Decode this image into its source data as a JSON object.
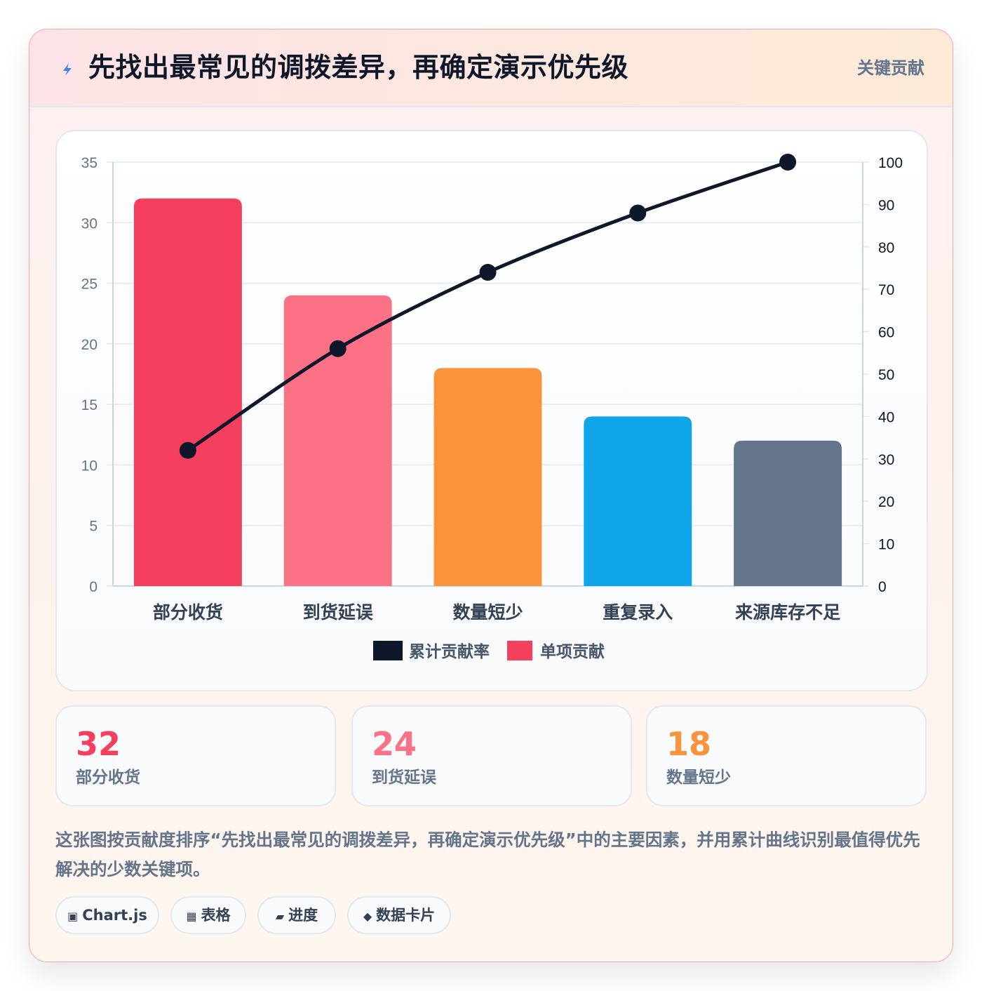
{
  "header": {
    "icon": "lightning-icon",
    "title": "先找出最常见的调拨差异，再确定演示优先级",
    "badge": "关键贡献"
  },
  "colors": {
    "line": "#0f172a",
    "bars": [
      "#f43f5e",
      "#fb7185",
      "#fb923c",
      "#0ea5e9",
      "#64748b"
    ],
    "grid": "#e2e8f0",
    "tick": "#64748b"
  },
  "chart_data": {
    "type": "bar",
    "categories": [
      "部分收货",
      "到货延误",
      "数量短少",
      "重复录入",
      "来源库存不足"
    ],
    "series": [
      {
        "name": "单项贡献",
        "type": "bar",
        "axis": "left",
        "values": [
          32,
          24,
          18,
          14,
          12
        ]
      },
      {
        "name": "累计贡献率",
        "type": "line",
        "axis": "right",
        "values": [
          32,
          56,
          74,
          88,
          100
        ]
      }
    ],
    "y_left": {
      "range": [
        0,
        35
      ],
      "ticks": [
        0,
        5,
        10,
        15,
        20,
        25,
        30,
        35
      ]
    },
    "y_right": {
      "range": [
        0,
        100
      ],
      "ticks": [
        0,
        10,
        20,
        30,
        40,
        50,
        60,
        70,
        80,
        90,
        100
      ]
    },
    "legend": {
      "placement": "bottom-center",
      "items": [
        "累计贡献率",
        "单项贡献"
      ]
    },
    "grid": true
  },
  "stats": [
    {
      "value": "32",
      "label": "部分收货",
      "color": "#f43f5e"
    },
    {
      "value": "24",
      "label": "到货延误",
      "color": "#fb7185"
    },
    {
      "value": "18",
      "label": "数量短少",
      "color": "#fb923c"
    }
  ],
  "description": "这张图按贡献度排序“先找出最常见的调拨差异，再确定演示优先级”中的主要因素，并用累计曲线识别最值得优先解决的少数关键项。",
  "chips": [
    {
      "icon": "▣",
      "icon_name": "chart-icon",
      "label": "Chart.js"
    },
    {
      "icon": "▦",
      "icon_name": "table-icon",
      "label": "表格"
    },
    {
      "icon": "▰",
      "icon_name": "progress-icon",
      "label": "进度"
    },
    {
      "icon": "◆",
      "icon_name": "data-card-icon",
      "label": "数据卡片"
    }
  ]
}
